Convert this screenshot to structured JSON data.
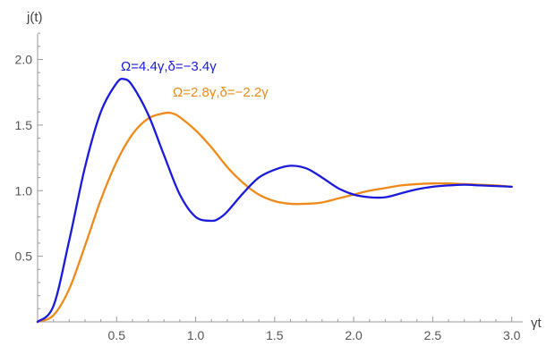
{
  "chart_data": {
    "type": "line",
    "xlabel": "γt",
    "ylabel": "j(t)",
    "xlim": [
      0,
      3.05
    ],
    "ylim": [
      0,
      2.3
    ],
    "xticks_major": [
      0.5,
      1.0,
      1.5,
      2.0,
      2.5,
      3.0
    ],
    "xtick_labels": [
      "0.5",
      "1.0",
      "1.5",
      "2.0",
      "2.5",
      "3.0"
    ],
    "yticks_major": [
      0.5,
      1.0,
      1.5,
      2.0
    ],
    "ytick_labels": [
      "0.5",
      "1.0",
      "1.5",
      "2.0"
    ],
    "grid": false,
    "series": [
      {
        "name": "Ω=4.4γ,δ=−3.4γ",
        "color": "#1a1adb",
        "x": [
          0,
          0.1,
          0.2,
          0.3,
          0.4,
          0.5,
          0.55,
          0.6,
          0.7,
          0.8,
          0.9,
          1.0,
          1.1,
          1.15,
          1.2,
          1.3,
          1.4,
          1.5,
          1.6,
          1.7,
          1.8,
          1.9,
          2.0,
          2.1,
          2.2,
          2.3,
          2.4,
          2.5,
          2.6,
          2.7,
          2.8,
          2.9,
          3.0
        ],
        "values": [
          0,
          0.12,
          0.62,
          1.18,
          1.6,
          1.82,
          1.85,
          1.8,
          1.58,
          1.27,
          0.97,
          0.8,
          0.77,
          0.79,
          0.84,
          0.98,
          1.1,
          1.16,
          1.19,
          1.17,
          1.1,
          1.02,
          0.97,
          0.95,
          0.95,
          0.98,
          1.01,
          1.03,
          1.04,
          1.045,
          1.04,
          1.035,
          1.03
        ]
      },
      {
        "name": "Ω=2.8γ,δ=−2.2γ",
        "color": "#ee8a1a",
        "x": [
          0,
          0.1,
          0.2,
          0.3,
          0.4,
          0.5,
          0.6,
          0.7,
          0.8,
          0.85,
          0.9,
          1.0,
          1.1,
          1.2,
          1.3,
          1.4,
          1.5,
          1.6,
          1.7,
          1.8,
          1.9,
          2.0,
          2.1,
          2.2,
          2.3,
          2.4,
          2.5,
          2.6,
          2.7,
          2.8,
          2.9,
          3.0
        ],
        "values": [
          0,
          0.05,
          0.25,
          0.58,
          0.93,
          1.22,
          1.43,
          1.55,
          1.59,
          1.59,
          1.56,
          1.46,
          1.33,
          1.18,
          1.06,
          0.97,
          0.92,
          0.9,
          0.9,
          0.91,
          0.94,
          0.97,
          1.0,
          1.02,
          1.04,
          1.05,
          1.055,
          1.055,
          1.05,
          1.045,
          1.04,
          1.03
        ]
      }
    ]
  }
}
